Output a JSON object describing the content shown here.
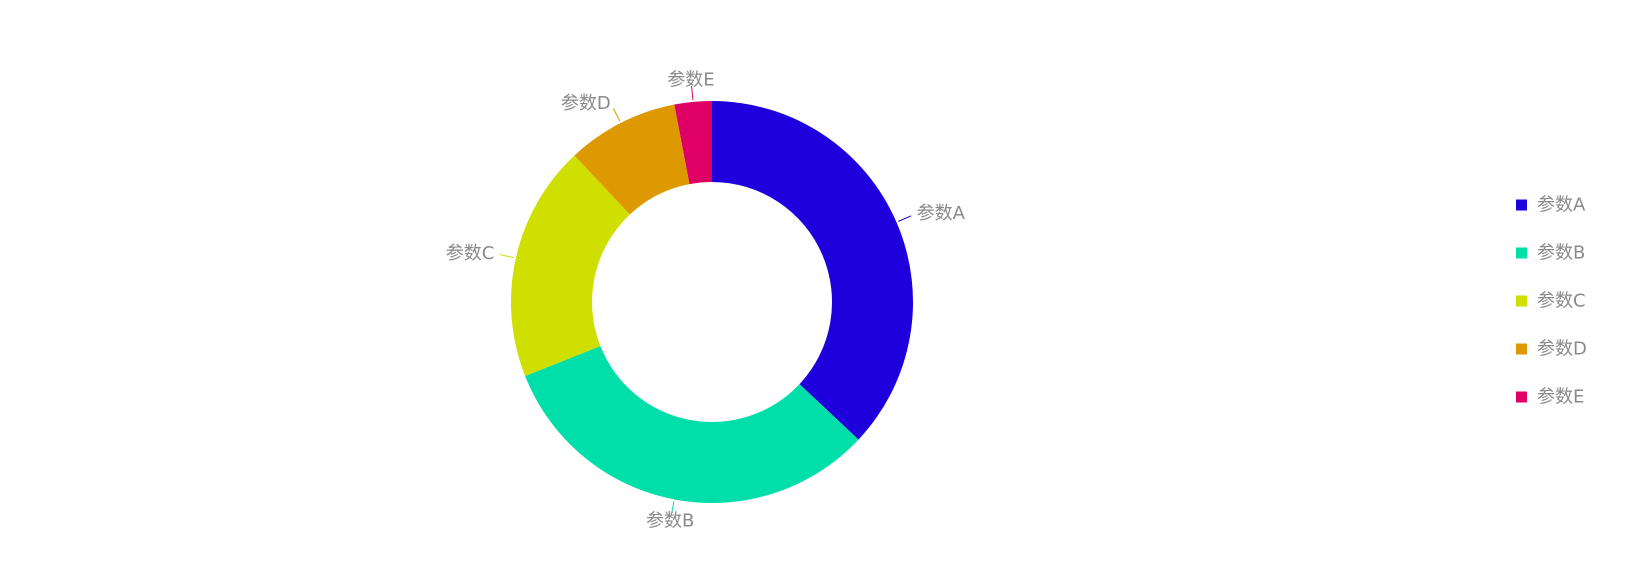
{
  "chart_data": {
    "type": "pie",
    "variant": "donut",
    "title": "",
    "legend_position": "right",
    "slices": [
      {
        "label": "参数A",
        "value": 37,
        "color": "#1e00dd"
      },
      {
        "label": "参数B",
        "value": 32,
        "color": "#00dfaa"
      },
      {
        "label": "参数C",
        "value": 19,
        "color": "#cfdf00"
      },
      {
        "label": "参数D",
        "value": 9,
        "color": "#df9900"
      },
      {
        "label": "参数E",
        "value": 3,
        "color": "#df0066"
      }
    ]
  }
}
